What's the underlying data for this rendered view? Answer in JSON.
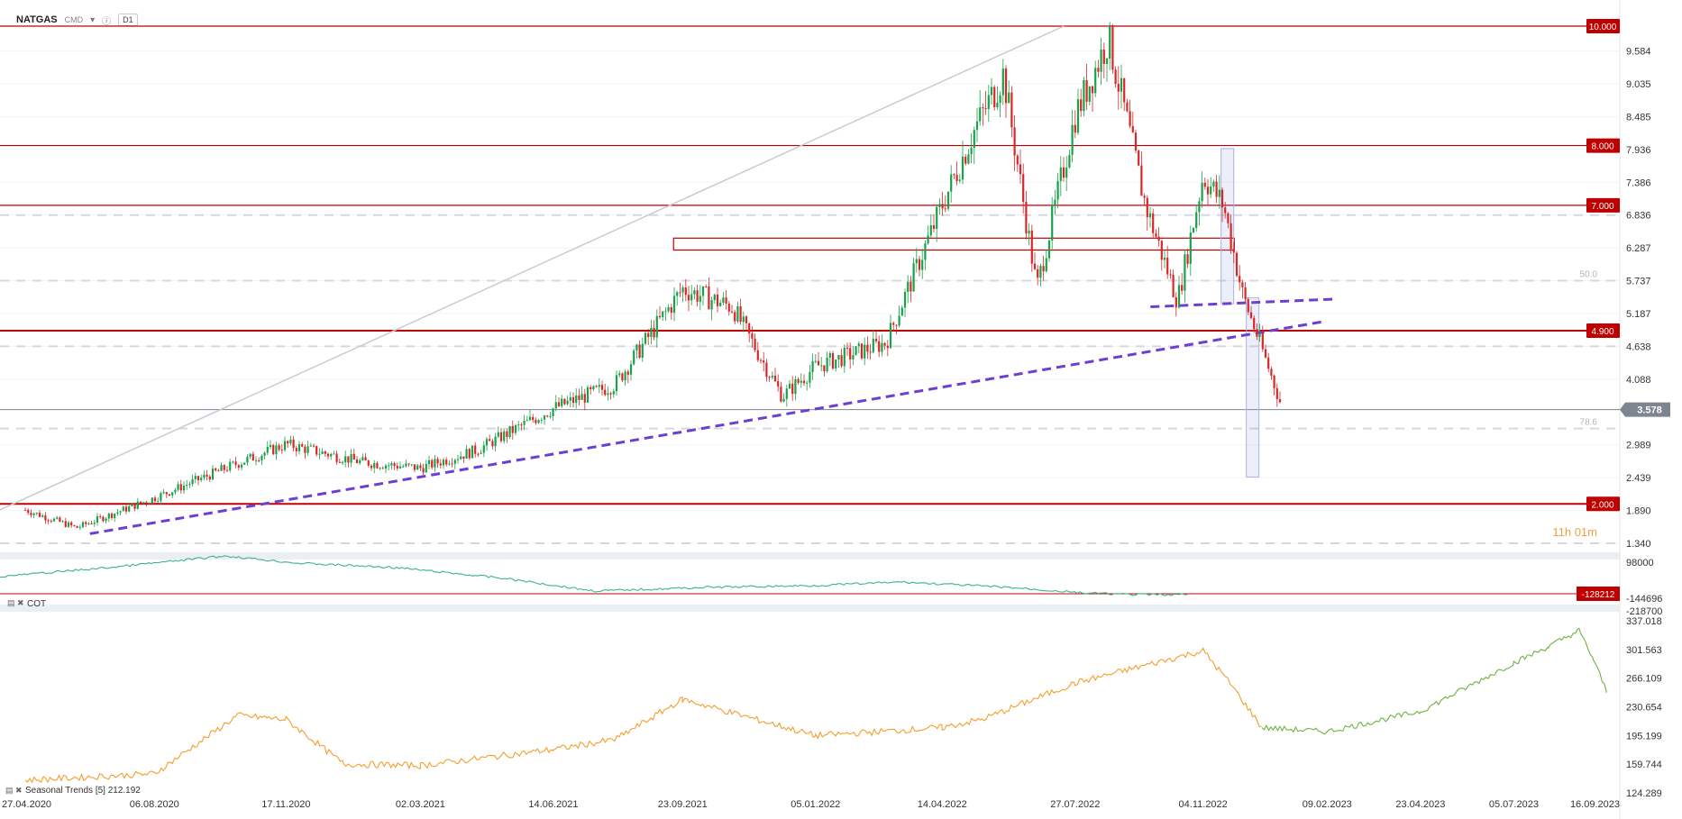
{
  "header": {
    "symbol": "NATGAS",
    "type": "CMD",
    "timeframe": "D1"
  },
  "chart_data": {
    "type": "candlestick",
    "symbol": "NATGAS",
    "timeframe": "D1",
    "price_ticks": [
      "9.584",
      "9.035",
      "8.485",
      "7.936",
      "7.386",
      "6.836",
      "6.287",
      "5.737",
      "5.187",
      "4.638",
      "4.088",
      "2.989",
      "2.439",
      "1.890",
      "1.340"
    ],
    "level_labels": [
      "10.000",
      "8.000",
      "7.000",
      "4.900",
      "2.000"
    ],
    "current_price": "3.578",
    "fib_labels": [
      "50.0",
      "78.6"
    ],
    "countdown": "11h 01m",
    "x_tick_labels": [
      "27.04.2020",
      "06.08.2020",
      "17.11.2020",
      "02.03.2021",
      "14.06.2021",
      "23.09.2021",
      "05.01.2022",
      "14.04.2022",
      "27.07.2022",
      "04.11.2022",
      "09.02.2023",
      "23.04.2023",
      "05.07.2023",
      "16.09.2023"
    ],
    "trend_price_path": [
      [
        "27.04.2020",
        1.9
      ],
      [
        "06.06.2020",
        1.6
      ],
      [
        "06.08.2020",
        2.1
      ],
      [
        "01.10.2020",
        2.6
      ],
      [
        "17.11.2020",
        3.0
      ],
      [
        "15.01.2021",
        2.7
      ],
      [
        "02.03.2021",
        2.6
      ],
      [
        "15.04.2021",
        2.9
      ],
      [
        "14.06.2021",
        3.6
      ],
      [
        "01.08.2021",
        4.0
      ],
      [
        "23.09.2021",
        5.6
      ],
      [
        "01.11.2021",
        5.3
      ],
      [
        "10.12.2021",
        3.8
      ],
      [
        "05.01.2022",
        4.3
      ],
      [
        "01.03.2022",
        4.7
      ],
      [
        "14.04.2022",
        7.0
      ],
      [
        "10.05.2022",
        8.3
      ],
      [
        "01.06.2022",
        9.2
      ],
      [
        "27.06.2022",
        5.6
      ],
      [
        "27.07.2022",
        8.5
      ],
      [
        "22.08.2022",
        9.8
      ],
      [
        "20.09.2022",
        7.0
      ],
      [
        "15.10.2022",
        5.4
      ],
      [
        "04.11.2022",
        7.5
      ],
      [
        "20.11.2022",
        7.0
      ],
      [
        "05.12.2022",
        5.5
      ],
      [
        "20.12.2022",
        4.6
      ],
      [
        "05.01.2023",
        3.6
      ]
    ],
    "indicator_1": {
      "ticks": [
        "98000",
        "-144696",
        "-218700"
      ],
      "level_label": "-128212"
    },
    "indicator_2": {
      "name": "COT",
      "legend": "Seasonal Trends [5] 212.192",
      "ticks": [
        "337.018",
        "301.563",
        "266.109",
        "230.654",
        "195.199",
        "159.744",
        "124.289"
      ],
      "history_path": [
        [
          "27.04.2020",
          140
        ],
        [
          "06.08.2020",
          148
        ],
        [
          "10.10.2020",
          220
        ],
        [
          "17.11.2020",
          215
        ],
        [
          "01.01.2021",
          160
        ],
        [
          "02.03.2021",
          158
        ],
        [
          "14.06.2021",
          178
        ],
        [
          "01.08.2021",
          190
        ],
        [
          "23.09.2021",
          240
        ],
        [
          "05.01.2022",
          195
        ],
        [
          "14.04.2022",
          205
        ],
        [
          "15.05.2022",
          215
        ],
        [
          "27.07.2022",
          260
        ],
        [
          "04.11.2022",
          300
        ],
        [
          "25.11.2022",
          260
        ],
        [
          "20.12.2022",
          205
        ]
      ],
      "seasonal_path": [
        [
          "20.12.2022",
          205
        ],
        [
          "09.02.2023",
          200
        ],
        [
          "23.04.2023",
          225
        ],
        [
          "05.07.2023",
          285
        ],
        [
          "01.08.2023",
          305
        ],
        [
          "25.08.2023",
          325
        ],
        [
          "05.09.2023",
          290
        ],
        [
          "16.09.2023",
          248
        ]
      ]
    },
    "colors": {
      "up": "#16a34a",
      "down": "#dc2626",
      "levels": "#c00000",
      "trendline": "#6d3fd1",
      "osc": "#3cb38a",
      "history": "#f59e2c",
      "seasonal": "#6db33f"
    }
  }
}
